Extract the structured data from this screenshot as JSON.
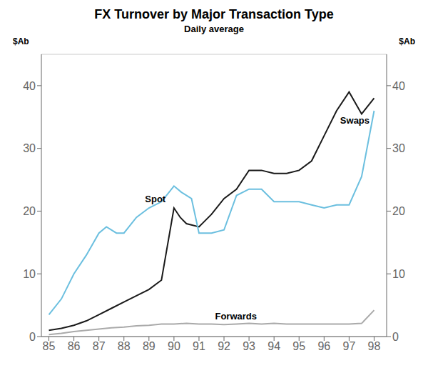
{
  "chart_data": {
    "type": "line",
    "title": "FX Turnover by Major Transaction Type",
    "subtitle": "Daily average",
    "ylabel": "$Ab",
    "y2label": "$Ab",
    "xlim": [
      1984.7,
      1998.5
    ],
    "xticks": [
      {
        "value": 1985,
        "label": "85"
      },
      {
        "value": 1986,
        "label": "86"
      },
      {
        "value": 1987,
        "label": "87"
      },
      {
        "value": 1988,
        "label": "88"
      },
      {
        "value": 1989,
        "label": "89"
      },
      {
        "value": 1990,
        "label": "90"
      },
      {
        "value": 1991,
        "label": "91"
      },
      {
        "value": 1992,
        "label": "92"
      },
      {
        "value": 1993,
        "label": "93"
      },
      {
        "value": 1994,
        "label": "94"
      },
      {
        "value": 1995,
        "label": "95"
      },
      {
        "value": 1996,
        "label": "96"
      },
      {
        "value": 1997,
        "label": "97"
      },
      {
        "value": 1998,
        "label": "98"
      }
    ],
    "ylim": [
      0,
      45
    ],
    "yticks": [
      0,
      10,
      20,
      30,
      40
    ],
    "y2lim": [
      0,
      45
    ],
    "y2ticks": [
      0,
      10,
      20,
      30,
      40
    ],
    "grid": true,
    "series": [
      {
        "name": "Swaps",
        "color": "#1a1a1a",
        "x": [
          1985,
          1985.5,
          1986,
          1986.5,
          1987,
          1987.5,
          1988,
          1988.5,
          1989,
          1989.5,
          1990,
          1990.25,
          1990.5,
          1991,
          1991.5,
          1992,
          1992.5,
          1993,
          1993.5,
          1994,
          1994.5,
          1995,
          1995.5,
          1996,
          1996.5,
          1997,
          1997.5,
          1998
        ],
        "values": [
          1.0,
          1.3,
          1.8,
          2.5,
          3.5,
          4.5,
          5.5,
          6.5,
          7.5,
          9.0,
          20.5,
          19.0,
          18.0,
          17.5,
          19.5,
          22.0,
          23.5,
          26.5,
          26.5,
          26.0,
          26.0,
          26.5,
          28.0,
          32.0,
          36.0,
          39.0,
          35.5,
          38.0
        ]
      },
      {
        "name": "Spot",
        "color": "#6bbfdf",
        "x": [
          1985,
          1985.5,
          1986,
          1986.5,
          1987,
          1987.3,
          1987.7,
          1988,
          1988.5,
          1989,
          1989.5,
          1990,
          1990.3,
          1990.7,
          1991,
          1991.5,
          1992,
          1992.5,
          1993,
          1993.5,
          1994,
          1994.5,
          1995,
          1995.5,
          1996,
          1996.5,
          1997,
          1997.5,
          1998
        ],
        "values": [
          3.5,
          6.0,
          10.0,
          13.0,
          16.5,
          17.5,
          16.5,
          16.5,
          19.0,
          20.5,
          21.5,
          24.0,
          23.0,
          22.0,
          16.5,
          16.5,
          17.0,
          22.5,
          23.5,
          23.5,
          21.5,
          21.5,
          21.5,
          21.0,
          20.5,
          21.0,
          21.0,
          25.5,
          36.0
        ]
      },
      {
        "name": "Forwards",
        "color": "#aaaaaa",
        "x": [
          1985,
          1985.5,
          1986,
          1986.5,
          1987,
          1987.5,
          1988,
          1988.5,
          1989,
          1989.5,
          1990,
          1990.5,
          1991,
          1991.5,
          1992,
          1992.5,
          1993,
          1993.5,
          1994,
          1994.5,
          1995,
          1995.5,
          1996,
          1996.5,
          1997,
          1997.5,
          1998
        ],
        "values": [
          0.3,
          0.5,
          0.8,
          1.0,
          1.2,
          1.4,
          1.5,
          1.7,
          1.8,
          2.0,
          2.0,
          2.1,
          2.0,
          2.0,
          1.9,
          2.0,
          2.1,
          2.0,
          2.1,
          2.0,
          2.0,
          2.0,
          2.0,
          2.0,
          2.0,
          2.1,
          4.2
        ]
      }
    ],
    "annotations": [
      {
        "text": "Swaps",
        "x": 1996.5,
        "y": 34.5
      },
      {
        "text": "Spot",
        "x": 1988.7,
        "y": 22.0
      },
      {
        "text": "Forwards",
        "x": 1991.5,
        "y": 3.3
      }
    ]
  }
}
